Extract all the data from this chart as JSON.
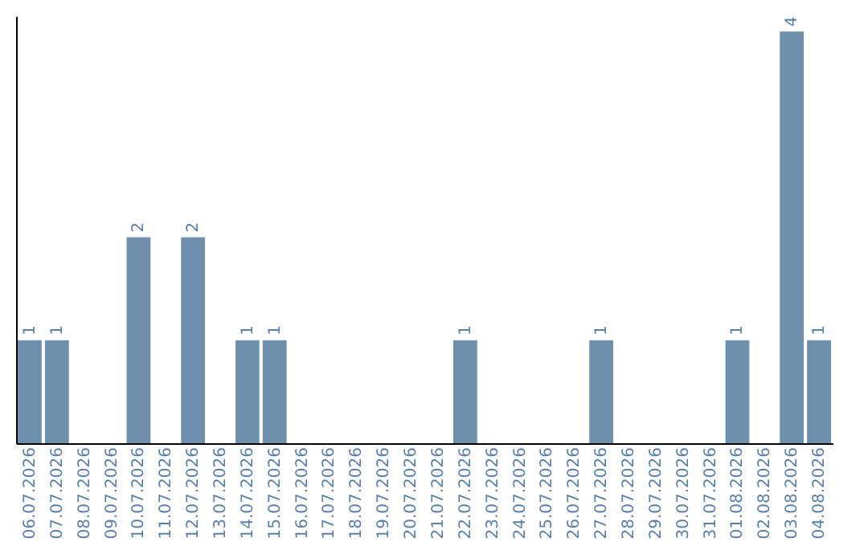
{
  "chart_data": {
    "type": "bar",
    "categories": [
      "06.07.2026",
      "07.07.2026",
      "08.07.2026",
      "09.07.2026",
      "10.07.2026",
      "11.07.2026",
      "12.07.2026",
      "13.07.2026",
      "14.07.2026",
      "15.07.2026",
      "16.07.2026",
      "17.07.2026",
      "18.07.2026",
      "19.07.2026",
      "20.07.2026",
      "21.07.2026",
      "22.07.2026",
      "23.07.2026",
      "24.07.2026",
      "25.07.2026",
      "26.07.2026",
      "27.07.2026",
      "28.07.2026",
      "29.07.2026",
      "30.07.2026",
      "31.07.2026",
      "01.08.2026",
      "02.08.2026",
      "03.08.2026",
      "04.08.2026"
    ],
    "values": [
      1,
      1,
      0,
      0,
      2,
      0,
      2,
      0,
      1,
      1,
      0,
      0,
      0,
      0,
      0,
      0,
      1,
      0,
      0,
      0,
      0,
      1,
      0,
      0,
      0,
      0,
      1,
      0,
      4,
      1
    ],
    "value_labels": [
      "1",
      "1",
      null,
      null,
      "2",
      null,
      "2",
      null,
      "1",
      "1",
      null,
      null,
      null,
      null,
      null,
      null,
      "1",
      null,
      null,
      null,
      null,
      "1",
      null,
      null,
      null,
      null,
      "1",
      null,
      "4",
      "1"
    ],
    "color": "#6f8fad",
    "ylim": [
      0,
      4.15
    ],
    "tick_labels": "x",
    "grid": false
  }
}
